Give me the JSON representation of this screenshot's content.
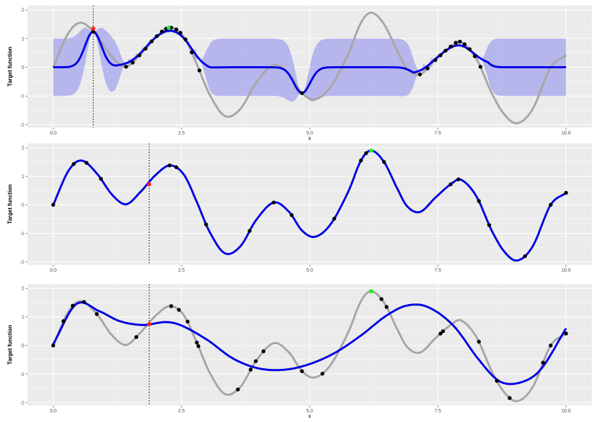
{
  "chart_data": [
    {
      "type": "line",
      "xlabel": "x",
      "ylabel": "Target function",
      "xlim": [
        -0.5,
        10.5
      ],
      "ylim": [
        -2.1,
        2.15
      ],
      "x_ticks": [
        0.0,
        2.5,
        5.0,
        7.5,
        10.0
      ],
      "x_tick_labels": [
        "0.0",
        "2.5",
        "5.0",
        "7.5",
        "10.0"
      ],
      "y_ticks": [
        -2,
        -1,
        0,
        1,
        2
      ],
      "y_tick_labels": [
        "-2",
        "-1",
        "0",
        "1",
        "2"
      ],
      "vline_x": 0.78,
      "show_target": true,
      "show_band": true,
      "mean_mode": "rbf",
      "rbf_gamma": 20,
      "rbf_prior": 0,
      "band_width": 1.0,
      "band_scale": 0.4,
      "points_x": [
        0.78,
        1.42,
        1.55,
        1.68,
        1.8,
        1.92,
        2.02,
        2.12,
        2.2,
        2.3,
        2.4,
        2.48,
        2.58,
        2.7,
        2.85,
        4.85,
        7.15,
        7.3,
        7.45,
        7.55,
        7.65,
        7.75,
        7.85,
        7.93,
        8.02,
        8.12,
        8.22,
        8.33
      ],
      "highlight_red": {
        "x": 0.78,
        "y": 1.35
      },
      "highlight_green": {
        "x": 2.25,
        "y": 1.38
      },
      "colors": {
        "target": "#a6a6a6",
        "fit": "#0000e6",
        "band": "#8a8aef",
        "point": "#000000",
        "red": "#ff2020",
        "green": "#22ee22",
        "panel": "#ebebeb",
        "grid": "#ffffff"
      }
    },
    {
      "type": "line",
      "xlabel": "",
      "ylabel": "Target function",
      "xlim": [
        -0.5,
        10.5
      ],
      "ylim": [
        -2.1,
        2.15
      ],
      "x_ticks": [
        0.0,
        2.5,
        5.0,
        7.5,
        10.0
      ],
      "x_tick_labels": [
        "0.0",
        "2.5",
        "5.0",
        "7.5",
        "10.0"
      ],
      "y_ticks": [
        -2,
        -1,
        0,
        1,
        2
      ],
      "y_tick_labels": [
        "-2",
        "-1",
        "0",
        "1",
        "2"
      ],
      "vline_x": 1.87,
      "show_target": false,
      "show_band": false,
      "mean_mode": "target",
      "points_x": [
        0.0,
        0.4,
        0.65,
        0.93,
        2.27,
        2.4,
        2.98,
        3.83,
        4.3,
        4.65,
        5.48,
        6.0,
        6.1,
        6.45,
        7.75,
        7.9,
        8.3,
        8.5,
        9.2,
        9.7,
        10.0
      ],
      "highlight_red": {
        "x": 1.87,
        "y": 0.72
      },
      "highlight_green": {
        "x": 6.2,
        "y": 1.9
      },
      "colors": {
        "target": "#a6a6a6",
        "fit": "#0000e6",
        "band": "#8a8aef",
        "point": "#000000",
        "red": "#ff2020",
        "green": "#22ee22",
        "panel": "#ebebeb",
        "grid": "#ffffff"
      }
    },
    {
      "type": "line",
      "xlabel": "x",
      "ylabel": "Target function",
      "xlim": [
        -0.5,
        10.5
      ],
      "ylim": [
        -2.1,
        2.15
      ],
      "x_ticks": [
        0.0,
        2.5,
        5.0,
        7.5,
        10.0
      ],
      "x_tick_labels": [
        "0.0",
        "2.5",
        "5.0",
        "7.5",
        "10.0"
      ],
      "y_ticks": [
        -2,
        -1,
        0,
        1,
        2
      ],
      "y_tick_labels": [
        "-2",
        "-1",
        "0",
        "1",
        "2"
      ],
      "vline_x": 1.87,
      "show_target": true,
      "show_band": false,
      "mean_mode": "knots",
      "mean_knots": [
        [
          0.0,
          0.05
        ],
        [
          0.45,
          1.45
        ],
        [
          0.9,
          1.2
        ],
        [
          1.3,
          0.85
        ],
        [
          1.75,
          0.72
        ],
        [
          2.2,
          0.82
        ],
        [
          2.5,
          0.7
        ],
        [
          3.0,
          0.2
        ],
        [
          3.5,
          -0.45
        ],
        [
          4.0,
          -0.8
        ],
        [
          4.5,
          -0.85
        ],
        [
          5.0,
          -0.65
        ],
        [
          5.5,
          -0.25
        ],
        [
          6.0,
          0.35
        ],
        [
          6.5,
          1.05
        ],
        [
          6.9,
          1.4
        ],
        [
          7.3,
          1.35
        ],
        [
          7.8,
          0.7
        ],
        [
          8.3,
          -0.5
        ],
        [
          8.7,
          -1.25
        ],
        [
          9.1,
          -1.3
        ],
        [
          9.5,
          -0.85
        ],
        [
          10.0,
          0.6
        ]
      ],
      "points_x": [
        0.0,
        0.2,
        0.38,
        0.6,
        0.85,
        1.62,
        2.3,
        2.45,
        2.62,
        2.8,
        2.83,
        3.6,
        3.85,
        3.95,
        4.1,
        4.85,
        5.25,
        6.4,
        6.5,
        7.55,
        7.6,
        8.3,
        8.65,
        8.9,
        9.55,
        9.7,
        10.0
      ],
      "highlight_red": {
        "x": 1.87,
        "y": 0.75
      },
      "highlight_green": {
        "x": 6.2,
        "y": 1.9
      },
      "colors": {
        "target": "#a6a6a6",
        "fit": "#0000e6",
        "band": "#8a8aef",
        "point": "#000000",
        "red": "#ff2020",
        "green": "#22ee22",
        "panel": "#ebebeb",
        "grid": "#ffffff"
      }
    }
  ]
}
